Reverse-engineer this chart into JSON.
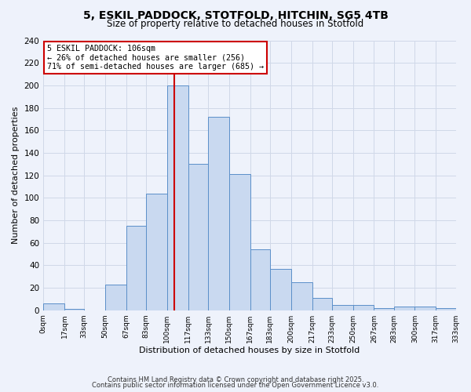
{
  "title": "5, ESKIL PADDOCK, STOTFOLD, HITCHIN, SG5 4TB",
  "subtitle": "Size of property relative to detached houses in Stotfold",
  "xlabel": "Distribution of detached houses by size in Stotfold",
  "ylabel": "Number of detached properties",
  "bin_edges": [
    0,
    17,
    33,
    50,
    67,
    83,
    100,
    117,
    133,
    150,
    167,
    183,
    200,
    217,
    233,
    250,
    267,
    283,
    300,
    317,
    333
  ],
  "counts": [
    6,
    1,
    0,
    23,
    75,
    104,
    200,
    130,
    172,
    121,
    54,
    37,
    25,
    11,
    5,
    5,
    2,
    3,
    3,
    2
  ],
  "bar_facecolor": "#c9d9f0",
  "bar_edgecolor": "#5b8fc9",
  "grid_color": "#d0d8e8",
  "vline_x": 106,
  "vline_color": "#cc0000",
  "annotation_title": "5 ESKIL PADDOCK: 106sqm",
  "annotation_line1": "← 26% of detached houses are smaller (256)",
  "annotation_line2": "71% of semi-detached houses are larger (685) →",
  "annotation_box_color": "#ffffff",
  "annotation_box_edgecolor": "#cc0000",
  "ylim": [
    0,
    240
  ],
  "yticks": [
    0,
    20,
    40,
    60,
    80,
    100,
    120,
    140,
    160,
    180,
    200,
    220,
    240
  ],
  "tick_labels": [
    "0sqm",
    "17sqm",
    "33sqm",
    "50sqm",
    "67sqm",
    "83sqm",
    "100sqm",
    "117sqm",
    "133sqm",
    "150sqm",
    "167sqm",
    "183sqm",
    "200sqm",
    "217sqm",
    "233sqm",
    "250sqm",
    "267sqm",
    "283sqm",
    "300sqm",
    "317sqm",
    "333sqm"
  ],
  "footnote1": "Contains HM Land Registry data © Crown copyright and database right 2025.",
  "footnote2": "Contains public sector information licensed under the Open Government Licence v3.0.",
  "bg_color": "#eef2fb",
  "plot_bg_color": "#eef2fb"
}
